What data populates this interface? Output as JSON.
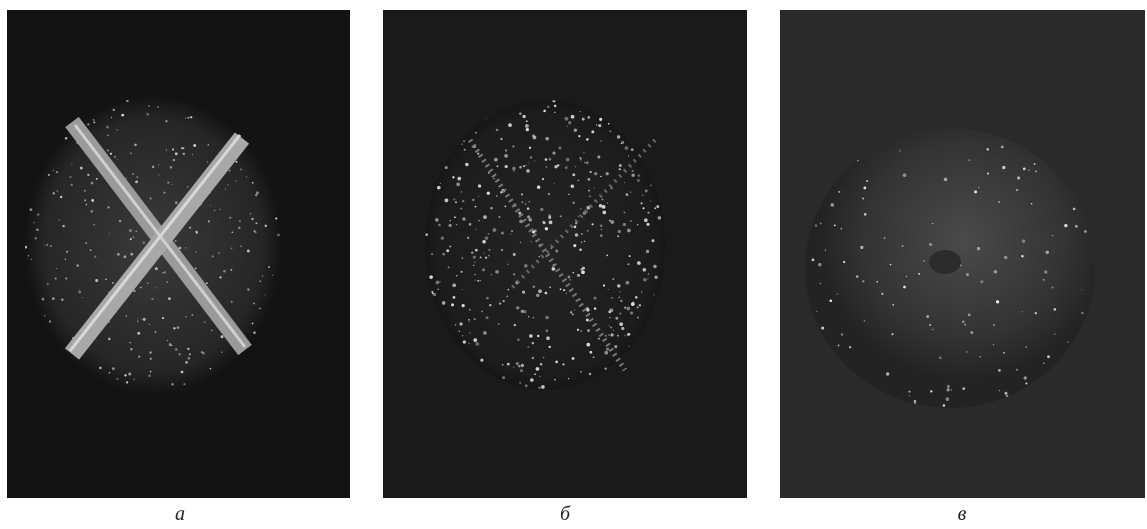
{
  "panels": [
    {
      "caption": "а"
    },
    {
      "caption": "б"
    },
    {
      "caption": "в"
    }
  ]
}
